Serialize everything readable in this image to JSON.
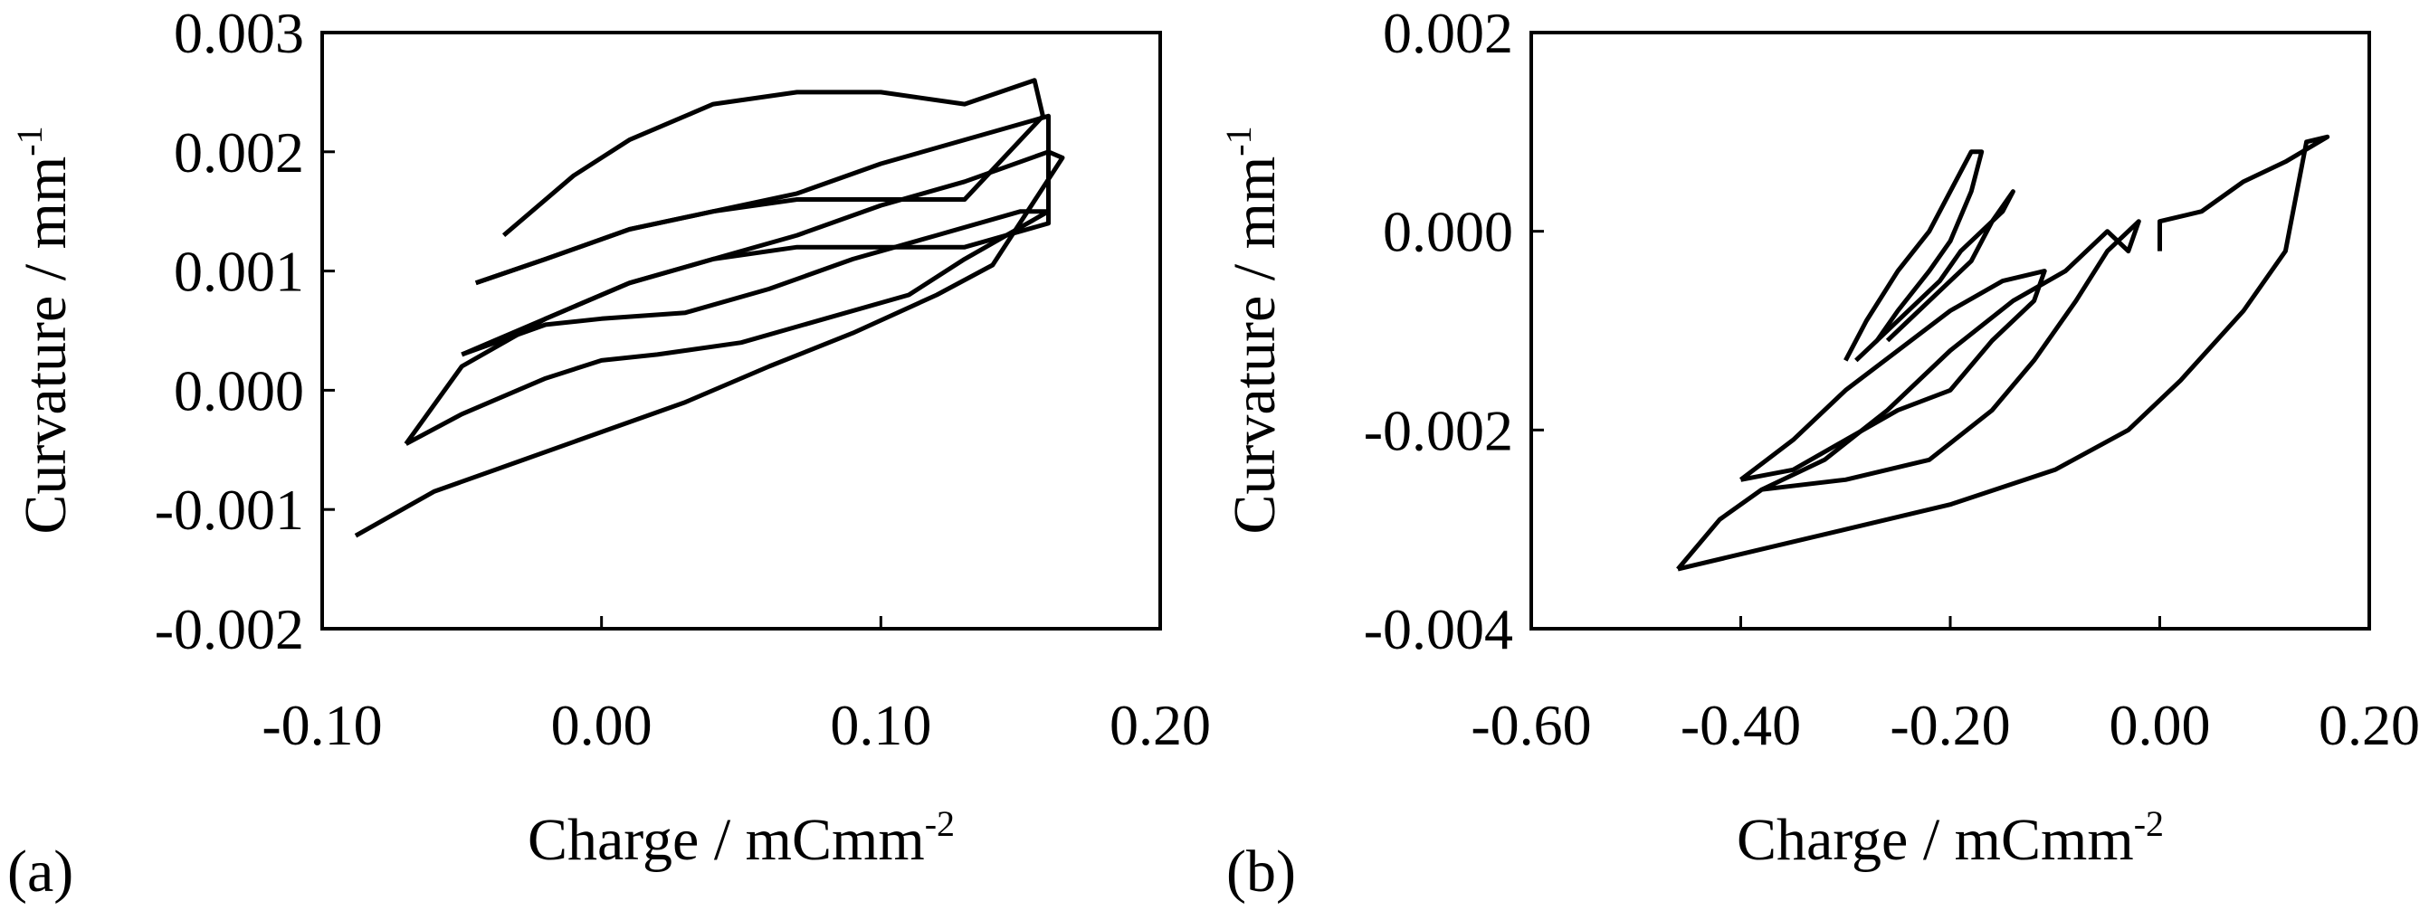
{
  "chart_data": [
    {
      "type": "line",
      "panel_label": "(a)",
      "xlabel": {
        "base": "Charge / mCmm",
        "sup": "-2"
      },
      "ylabel": {
        "base": "Curvature / mm",
        "sup": "-1"
      },
      "xlim": [
        -0.1,
        0.2
      ],
      "ylim": [
        -0.002,
        0.003
      ],
      "xticks": [
        -0.1,
        0.0,
        0.1,
        0.2
      ],
      "xtick_labels": [
        "-0.10",
        "0.00",
        "0.10",
        "0.20"
      ],
      "yticks": [
        -0.002,
        -0.001,
        0.0,
        0.001,
        0.002,
        0.003
      ],
      "ytick_labels": [
        "-0.002",
        "-0.001",
        "0.000",
        "0.001",
        "0.002",
        "0.003"
      ],
      "grid": false,
      "series": [
        {
          "x": [
            -0.088,
            -0.06,
            -0.03,
            0.0,
            0.03,
            0.06,
            0.09,
            0.12,
            0.14,
            0.165,
            0.16,
            0.13,
            0.1,
            0.07,
            0.04,
            0.01,
            -0.02,
            -0.05,
            -0.07
          ],
          "y": [
            -0.00122,
            -0.00085,
            -0.0006,
            -0.00035,
            -0.0001,
            0.0002,
            0.00048,
            0.0008,
            0.00105,
            0.00195,
            0.002,
            0.00175,
            0.00155,
            0.0013,
            0.0011,
            0.0009,
            0.0006,
            0.0002,
            -0.00045
          ]
        },
        {
          "x": [
            -0.07,
            -0.05,
            -0.02,
            0.0,
            0.02,
            0.05,
            0.08,
            0.11,
            0.13,
            0.16,
            0.15,
            0.12,
            0.09,
            0.06,
            0.03,
            0.0,
            -0.02,
            -0.05
          ],
          "y": [
            -0.00045,
            -0.0002,
            0.0001,
            0.00025,
            0.0003,
            0.0004,
            0.0006,
            0.0008,
            0.0011,
            0.0015,
            0.0015,
            0.0013,
            0.0011,
            0.00085,
            0.00065,
            0.0006,
            0.00055,
            0.0003
          ]
        },
        {
          "x": [
            -0.05,
            -0.02,
            0.01,
            0.04,
            0.07,
            0.1,
            0.13,
            0.16,
            0.16,
            0.13,
            0.1,
            0.07,
            0.04,
            0.01,
            -0.02,
            -0.045
          ],
          "y": [
            0.0003,
            0.0006,
            0.0009,
            0.0011,
            0.0012,
            0.0012,
            0.0012,
            0.0014,
            0.0023,
            0.0021,
            0.0019,
            0.00165,
            0.0015,
            0.00135,
            0.0011,
            0.0009
          ]
        },
        {
          "x": [
            -0.045,
            -0.02,
            0.01,
            0.04,
            0.07,
            0.1,
            0.13,
            0.158,
            0.155,
            0.13,
            0.1,
            0.07,
            0.04,
            0.01,
            -0.01,
            -0.035
          ],
          "y": [
            0.0009,
            0.0011,
            0.00135,
            0.0015,
            0.0016,
            0.0016,
            0.0016,
            0.0023,
            0.0026,
            0.0024,
            0.0025,
            0.0025,
            0.0024,
            0.0021,
            0.0018,
            0.0013
          ]
        }
      ]
    },
    {
      "type": "line",
      "panel_label": "(b)",
      "xlabel": {
        "base": "Charge / mCmm",
        "sup": "-2"
      },
      "ylabel": {
        "base": "Curvature / mm",
        "sup": "-1"
      },
      "xlim": [
        -0.6,
        0.2
      ],
      "ylim": [
        -0.004,
        0.002
      ],
      "xticks": [
        -0.6,
        -0.4,
        -0.2,
        0.0,
        0.2
      ],
      "xtick_labels": [
        "-0.60",
        "-0.40",
        "-0.20",
        "0.00",
        "0.20"
      ],
      "yticks": [
        -0.004,
        -0.002,
        0.0,
        0.002
      ],
      "ytick_labels": [
        "-0.004",
        "-0.002",
        "0.000",
        "0.002"
      ],
      "grid": false,
      "series": [
        {
          "x": [
            -0.46,
            -0.4,
            -0.3,
            -0.2,
            -0.1,
            -0.03,
            0.02,
            0.08,
            0.12,
            0.14,
            0.16,
            0.12,
            0.08,
            0.04,
            0.0,
            0.0
          ],
          "y": [
            -0.0034,
            -0.00325,
            -0.003,
            -0.00275,
            -0.0024,
            -0.002,
            -0.0015,
            -0.0008,
            -0.0002,
            0.0009,
            0.00095,
            0.0007,
            0.0005,
            0.0002,
            0.0001,
            -0.0002
          ]
        },
        {
          "x": [
            -0.46,
            -0.42,
            -0.38,
            -0.3,
            -0.22,
            -0.16,
            -0.12,
            -0.08,
            -0.05,
            -0.02,
            -0.03,
            -0.05,
            -0.09,
            -0.14,
            -0.2,
            -0.26,
            -0.32,
            -0.38
          ],
          "y": [
            -0.0034,
            -0.0029,
            -0.0026,
            -0.0025,
            -0.0023,
            -0.0018,
            -0.0013,
            -0.0007,
            -0.0002,
            0.0001,
            -0.0002,
            0.0,
            -0.0004,
            -0.0007,
            -0.0012,
            -0.0018,
            -0.0023,
            -0.0026
          ]
        },
        {
          "x": [
            -0.4,
            -0.35,
            -0.3,
            -0.25,
            -0.2,
            -0.16,
            -0.12,
            -0.11,
            -0.15,
            -0.2,
            -0.25,
            -0.3,
            -0.35,
            -0.4
          ],
          "y": [
            -0.0025,
            -0.0024,
            -0.0021,
            -0.0018,
            -0.0016,
            -0.0011,
            -0.0007,
            -0.0004,
            -0.0005,
            -0.0008,
            -0.0012,
            -0.0016,
            -0.0021,
            -0.0025
          ]
        },
        {
          "x": [
            -0.29,
            -0.27,
            -0.25,
            -0.22,
            -0.2,
            -0.18,
            -0.17,
            -0.18,
            -0.2,
            -0.22,
            -0.25,
            -0.28,
            -0.3
          ],
          "y": [
            -0.0013,
            -0.0011,
            -0.0008,
            -0.0004,
            -0.0001,
            0.0004,
            0.0008,
            0.0008,
            0.0004,
            0.0,
            -0.0004,
            -0.0009,
            -0.0013
          ]
        },
        {
          "x": [
            -0.27,
            -0.24,
            -0.21,
            -0.19,
            -0.17,
            -0.15,
            -0.14,
            -0.16,
            -0.18,
            -0.21,
            -0.24,
            -0.26
          ],
          "y": [
            -0.0011,
            -0.0008,
            -0.0005,
            -0.0002,
            0.0,
            0.0002,
            0.0004,
            0.0001,
            -0.0003,
            -0.0006,
            -0.0009,
            -0.0011
          ]
        }
      ]
    }
  ]
}
